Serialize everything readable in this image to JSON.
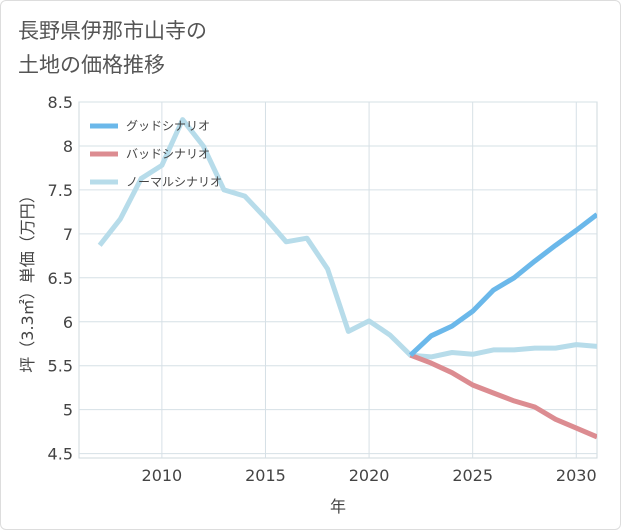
{
  "chart_data": {
    "type": "line",
    "title_lines": [
      "長野県伊那市山寺の",
      "土地の価格推移"
    ],
    "xlabel": "年",
    "ylabel": "坪（3.3㎡）単価（万円）",
    "xlim": [
      2006,
      2031
    ],
    "ylim": [
      4.45,
      8.5
    ],
    "x_ticks": [
      2010,
      2015,
      2020,
      2025,
      2030
    ],
    "y_ticks": [
      4.5,
      5,
      5.5,
      6,
      6.5,
      7,
      7.5,
      8,
      8.5
    ],
    "grid": true,
    "legend_position": "top-left",
    "series": [
      {
        "name": "グッドシナリオ",
        "color": "#6bb8ea",
        "x": [
          2022,
          2023,
          2024,
          2025,
          2026,
          2027,
          2028,
          2029,
          2030,
          2031
        ],
        "y": [
          5.62,
          5.84,
          5.95,
          6.12,
          6.36,
          6.5,
          6.69,
          6.87,
          7.04,
          7.22
        ]
      },
      {
        "name": "バッドシナリオ",
        "color": "#dc8c91",
        "x": [
          2022,
          2023,
          2024,
          2025,
          2026,
          2027,
          2028,
          2029,
          2030,
          2031
        ],
        "y": [
          5.62,
          5.53,
          5.42,
          5.28,
          5.19,
          5.1,
          5.03,
          4.89,
          4.79,
          4.69
        ]
      },
      {
        "name": "ノーマルシナリオ",
        "color": "#b7dcea",
        "x": [
          2007,
          2008,
          2009,
          2010,
          2011,
          2012,
          2013,
          2014,
          2015,
          2016,
          2017,
          2018,
          2019,
          2020,
          2021,
          2022,
          2023,
          2024,
          2025,
          2026,
          2027,
          2028,
          2029,
          2030,
          2031
        ],
        "y": [
          6.87,
          7.17,
          7.63,
          7.78,
          8.3,
          8.0,
          7.5,
          7.43,
          7.18,
          6.91,
          6.95,
          6.6,
          5.89,
          6.01,
          5.85,
          5.62,
          5.6,
          5.65,
          5.63,
          5.68,
          5.68,
          5.7,
          5.7,
          5.74,
          5.72
        ]
      }
    ]
  }
}
